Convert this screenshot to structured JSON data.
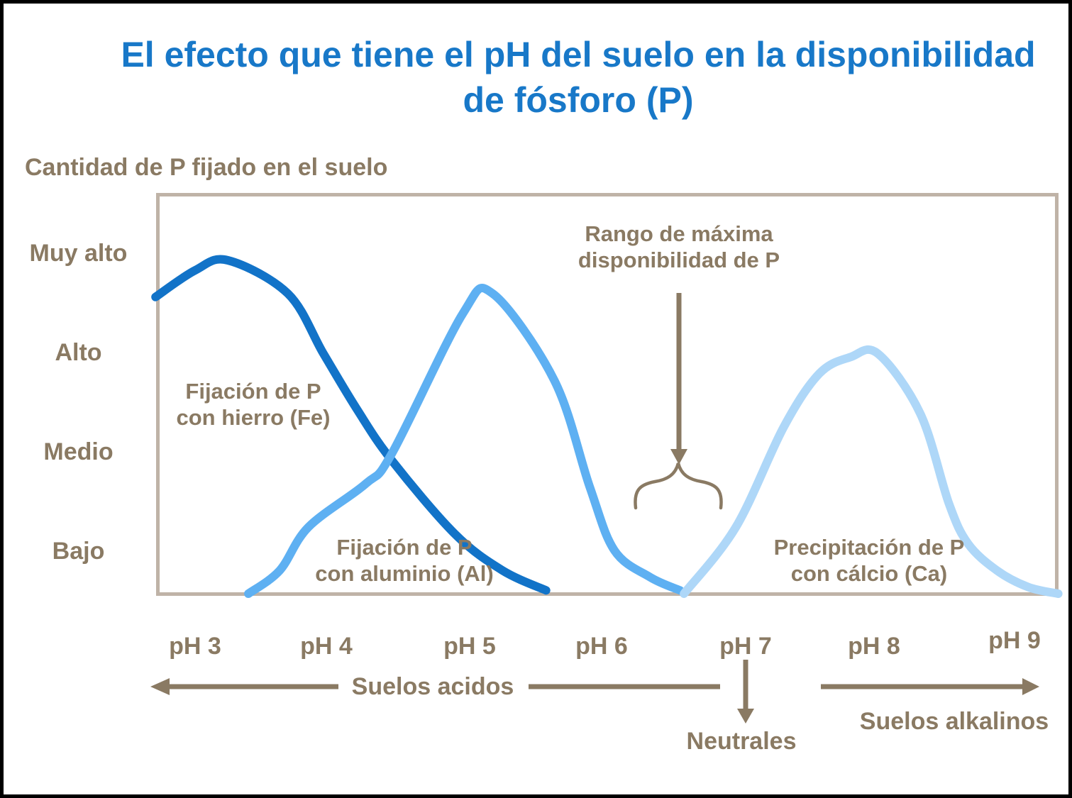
{
  "title": {
    "line1": "El efecto que tiene el pH del suelo en la disponibilidad",
    "line2": "de fósforo (P)"
  },
  "colors": {
    "title_blue": "#1878c8",
    "brown": "#8a7a63",
    "box_border": "#bfb3a7",
    "curve_fe": "#1273c8",
    "curve_al": "#5eb0f2",
    "curve_ca": "#aed7f8"
  },
  "chart_data": {
    "type": "line",
    "title": "El efecto que tiene el pH del suelo en la disponibilidad de fósforo (P)",
    "ylabel": "Cantidad de P fijado en el suelo",
    "xlabel": "pH",
    "y_ticks": [
      "Muy alto",
      "Alto",
      "Medio",
      "Bajo"
    ],
    "x_ticks": [
      "pH 3",
      "pH 4",
      "pH 5",
      "pH 6",
      "pH 7",
      "pH 8",
      "pH 9"
    ],
    "x_range": [
      2.7,
      9.35
    ],
    "y_range": [
      0,
      1
    ],
    "grid": false,
    "legend_position": "labels-on-chart",
    "series": [
      {
        "name": "Fijación de P con hierro (Fe)",
        "label_line1": "Fijación de P",
        "label_line2": "con hierro (Fe)",
        "color_key": "curve_fe",
        "points": [
          [
            2.71,
            0.89
          ],
          [
            3.0,
            0.97
          ],
          [
            3.24,
            1.0
          ],
          [
            3.68,
            0.9
          ],
          [
            3.94,
            0.72
          ],
          [
            4.19,
            0.55
          ],
          [
            4.44,
            0.4
          ],
          [
            4.9,
            0.18
          ],
          [
            5.25,
            0.07
          ],
          [
            5.57,
            0.01
          ]
        ]
      },
      {
        "name": "Fijación de P con aluminio (Al)",
        "label_line1": "Fijación de P",
        "label_line2": "con aluminio (Al)",
        "color_key": "curve_al",
        "points": [
          [
            3.39,
            0.0
          ],
          [
            3.62,
            0.07
          ],
          [
            3.83,
            0.2
          ],
          [
            4.25,
            0.33
          ],
          [
            4.44,
            0.42
          ],
          [
            4.96,
            0.84
          ],
          [
            5.18,
            0.9
          ],
          [
            5.63,
            0.64
          ],
          [
            5.89,
            0.32
          ],
          [
            6.07,
            0.13
          ],
          [
            6.33,
            0.05
          ],
          [
            6.55,
            0.01
          ]
        ]
      },
      {
        "name": "Precipitación de P con cálcio (Ca)",
        "label_line1": "Precipitación de P",
        "label_line2": "con cálcio (Ca)",
        "color_key": "curve_ca",
        "points": [
          [
            6.58,
            0.0
          ],
          [
            6.96,
            0.2
          ],
          [
            7.31,
            0.5
          ],
          [
            7.57,
            0.66
          ],
          [
            7.8,
            0.71
          ],
          [
            8.0,
            0.72
          ],
          [
            8.31,
            0.54
          ],
          [
            8.52,
            0.27
          ],
          [
            8.66,
            0.15
          ],
          [
            8.87,
            0.07
          ],
          [
            9.1,
            0.02
          ],
          [
            9.32,
            0.0
          ]
        ]
      }
    ],
    "annotation": {
      "line1": "Rango de máxima",
      "line2": "disponibilidad de P",
      "ph_range": [
        6.2,
        6.9
      ]
    },
    "x_axis_zones": {
      "acid": "Suelos acidos",
      "neutral": "Neutrales",
      "alkaline": "Suelos alkalinos"
    }
  }
}
